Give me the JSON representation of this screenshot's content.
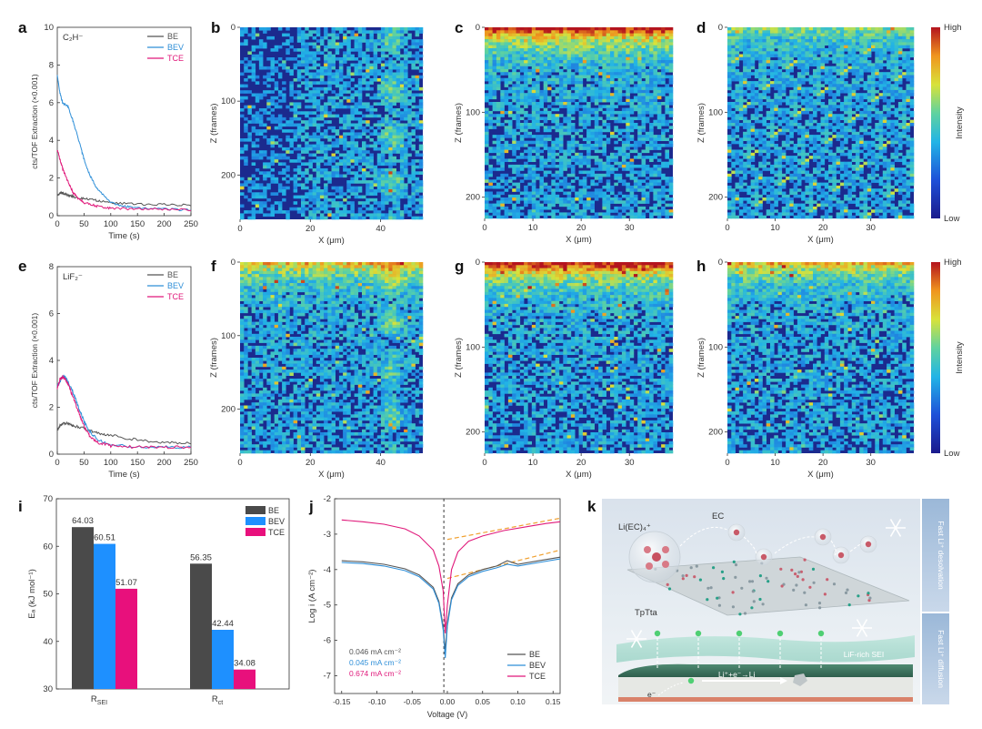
{
  "panel_labels": [
    "a",
    "b",
    "c",
    "d",
    "e",
    "f",
    "g",
    "h",
    "i",
    "j",
    "k"
  ],
  "colors": {
    "BE": "#555555",
    "BEV": "#2f8fd8",
    "TCE": "#e0187a",
    "bar_BE": "#4a4a4a",
    "bar_BEV": "#1e90ff",
    "bar_TCE": "#e8107c",
    "dash": "#f0a030"
  },
  "chart_data": [
    {
      "id": "a",
      "type": "line",
      "annotation": "C₂H⁻",
      "xlabel": "Time (s)",
      "ylabel": "cts/TOF Extraction (×0.001)",
      "xlim": [
        0,
        250
      ],
      "ylim": [
        0,
        10
      ],
      "x_ticks": [
        "0",
        "50",
        "100",
        "150",
        "200",
        "250"
      ],
      "y_ticks": [
        "0",
        "2",
        "4",
        "6",
        "8",
        "10"
      ],
      "legend_position": "top-right",
      "series": [
        {
          "name": "BE",
          "x": [
            0,
            5,
            10,
            20,
            30,
            50,
            75,
            100,
            150,
            200,
            250
          ],
          "y": [
            1.1,
            1.2,
            1.2,
            1.1,
            1.0,
            0.9,
            0.8,
            0.7,
            0.6,
            0.6,
            0.55
          ]
        },
        {
          "name": "BEV",
          "x": [
            0,
            5,
            10,
            20,
            30,
            40,
            50,
            60,
            75,
            100,
            125,
            150,
            200,
            250
          ],
          "y": [
            7.5,
            6.5,
            6.0,
            5.8,
            5.0,
            4.0,
            3.0,
            2.2,
            1.4,
            0.7,
            0.5,
            0.4,
            0.35,
            0.3
          ]
        },
        {
          "name": "TCE",
          "x": [
            0,
            5,
            10,
            20,
            30,
            40,
            50,
            75,
            100,
            150,
            200,
            250
          ],
          "y": [
            3.5,
            3.0,
            2.5,
            1.8,
            1.2,
            0.9,
            0.7,
            0.5,
            0.4,
            0.35,
            0.35,
            0.3
          ]
        }
      ]
    },
    {
      "id": "b",
      "type": "heatmap",
      "xlabel": "X (μm)",
      "ylabel": "Z (frames)",
      "x_ticks": [
        "0",
        "20",
        "40"
      ],
      "y_ticks": [
        "0",
        "100",
        "200"
      ],
      "xlim": [
        0,
        52
      ],
      "ylim": [
        0,
        260
      ],
      "surface_band": "none",
      "streak": "right"
    },
    {
      "id": "c",
      "type": "heatmap",
      "xlabel": "X (μm)",
      "ylabel": "Z (frames)",
      "x_ticks": [
        "0",
        "10",
        "20",
        "30"
      ],
      "y_ticks": [
        "0",
        "100",
        "200"
      ],
      "xlim": [
        0,
        39
      ],
      "ylim": [
        0,
        225
      ],
      "surface_band": "strong",
      "streak": "none"
    },
    {
      "id": "d",
      "type": "heatmap",
      "xlabel": "X (μm)",
      "ylabel": "Z (frames)",
      "x_ticks": [
        "0",
        "10",
        "20",
        "30"
      ],
      "y_ticks": [
        "0",
        "100",
        "200"
      ],
      "xlim": [
        0,
        39
      ],
      "ylim": [
        0,
        225
      ],
      "surface_band": "weak",
      "streak": "none",
      "colorbar": {
        "high": "High",
        "low": "Low",
        "label": "Intensity"
      }
    },
    {
      "id": "e",
      "type": "line",
      "annotation": "LiF₂⁻",
      "xlabel": "Time (s)",
      "ylabel": "cts/TOF Extraction (×0.001)",
      "xlim": [
        0,
        250
      ],
      "ylim": [
        0,
        8
      ],
      "x_ticks": [
        "0",
        "50",
        "100",
        "150",
        "200",
        "250"
      ],
      "y_ticks": [
        "0",
        "2",
        "4",
        "6",
        "8"
      ],
      "legend_position": "top-right",
      "series": [
        {
          "name": "BE",
          "x": [
            0,
            5,
            10,
            20,
            30,
            50,
            75,
            100,
            150,
            200,
            250
          ],
          "y": [
            1.0,
            1.2,
            1.3,
            1.3,
            1.2,
            1.1,
            0.9,
            0.8,
            0.6,
            0.5,
            0.45
          ]
        },
        {
          "name": "BEV",
          "x": [
            0,
            5,
            10,
            15,
            20,
            30,
            40,
            50,
            60,
            75,
            100,
            150,
            200,
            250
          ],
          "y": [
            2.9,
            3.1,
            3.3,
            3.3,
            3.1,
            2.6,
            2.0,
            1.4,
            1.0,
            0.6,
            0.4,
            0.3,
            0.3,
            0.3
          ]
        },
        {
          "name": "TCE",
          "x": [
            0,
            5,
            10,
            15,
            20,
            30,
            40,
            50,
            60,
            75,
            100,
            150,
            200,
            250
          ],
          "y": [
            2.8,
            3.2,
            3.3,
            3.2,
            3.0,
            2.4,
            1.8,
            1.2,
            0.8,
            0.5,
            0.35,
            0.3,
            0.3,
            0.3
          ]
        }
      ]
    },
    {
      "id": "f",
      "type": "heatmap",
      "xlabel": "X (μm)",
      "ylabel": "Z (frames)",
      "x_ticks": [
        "0",
        "20",
        "40"
      ],
      "y_ticks": [
        "0",
        "100",
        "200"
      ],
      "xlim": [
        0,
        52
      ],
      "ylim": [
        0,
        260
      ],
      "surface_band": "medium",
      "streak": "right"
    },
    {
      "id": "g",
      "type": "heatmap",
      "xlabel": "X (μm)",
      "ylabel": "Z (frames)",
      "x_ticks": [
        "0",
        "10",
        "20",
        "30"
      ],
      "y_ticks": [
        "0",
        "100",
        "200"
      ],
      "xlim": [
        0,
        39
      ],
      "ylim": [
        0,
        225
      ],
      "surface_band": "strong",
      "streak": "none"
    },
    {
      "id": "h",
      "type": "heatmap",
      "xlabel": "X (μm)",
      "ylabel": "Z (frames)",
      "x_ticks": [
        "0",
        "10",
        "20",
        "30"
      ],
      "y_ticks": [
        "0",
        "100",
        "200"
      ],
      "xlim": [
        0,
        39
      ],
      "ylim": [
        0,
        225
      ],
      "surface_band": "medium",
      "streak": "none",
      "colorbar": {
        "high": "High",
        "low": "Low",
        "label": "Intensity"
      }
    },
    {
      "id": "i",
      "type": "bar",
      "ylabel": "Eₐ (kJ mol⁻¹)",
      "ylim": [
        30,
        70
      ],
      "y_ticks": [
        "30",
        "40",
        "50",
        "60",
        "70"
      ],
      "categories": [
        "R_SEI",
        "R_ct"
      ],
      "category_labels": [
        {
          "main": "R",
          "sub": "SEI"
        },
        {
          "main": "R",
          "sub": "ct"
        }
      ],
      "legend_position": "top-right",
      "series": [
        {
          "name": "BE",
          "values": [
            64.03,
            56.35
          ],
          "labels": [
            "64.03",
            "56.35"
          ]
        },
        {
          "name": "BEV",
          "values": [
            60.51,
            42.44
          ],
          "labels": [
            "60.51",
            "42.44"
          ]
        },
        {
          "name": "TCE",
          "values": [
            51.07,
            34.08
          ],
          "labels": [
            "51.07",
            "34.08"
          ]
        }
      ]
    },
    {
      "id": "j",
      "type": "line",
      "xlabel": "Voltage (V)",
      "ylabel": "Log i (A cm⁻²)",
      "xlim": [
        -0.16,
        0.16
      ],
      "ylim": [
        -7.5,
        -2
      ],
      "x_ticks": [
        "-0.15",
        "-0.10",
        "-0.05",
        "0.00",
        "0.05",
        "0.10",
        "0.15"
      ],
      "y_ticks": [
        "-2",
        "-3",
        "-4",
        "-5",
        "-6",
        "-7"
      ],
      "legend_position": "bottom-right",
      "exchange_currents": [
        {
          "label": "0.046 mA cm⁻²",
          "series": "BE"
        },
        {
          "label": "0.045 mA cm⁻²",
          "series": "BEV"
        },
        {
          "label": "0.674 mA cm⁻²",
          "series": "TCE"
        }
      ],
      "series": [
        {
          "name": "BE",
          "x": [
            -0.15,
            -0.12,
            -0.09,
            -0.06,
            -0.04,
            -0.02,
            -0.012,
            -0.006,
            -0.003,
            0.0,
            0.006,
            0.015,
            0.03,
            0.05,
            0.07,
            0.085,
            0.1,
            0.13,
            0.16
          ],
          "y": [
            -3.75,
            -3.78,
            -3.85,
            -3.98,
            -4.15,
            -4.5,
            -4.9,
            -5.6,
            -6.3,
            -5.5,
            -4.8,
            -4.4,
            -4.15,
            -4.0,
            -3.9,
            -3.75,
            -3.85,
            -3.75,
            -3.65
          ]
        },
        {
          "name": "BEV",
          "x": [
            -0.15,
            -0.12,
            -0.09,
            -0.06,
            -0.04,
            -0.02,
            -0.012,
            -0.006,
            -0.003,
            0.0,
            0.006,
            0.015,
            0.03,
            0.05,
            0.07,
            0.085,
            0.1,
            0.13,
            0.16
          ],
          "y": [
            -3.8,
            -3.83,
            -3.9,
            -4.03,
            -4.2,
            -4.55,
            -4.95,
            -5.7,
            -6.5,
            -5.6,
            -4.85,
            -4.45,
            -4.2,
            -4.05,
            -3.95,
            -3.85,
            -3.9,
            -3.8,
            -3.7
          ]
        },
        {
          "name": "TCE",
          "x": [
            -0.15,
            -0.12,
            -0.09,
            -0.06,
            -0.04,
            -0.02,
            -0.012,
            -0.006,
            -0.003,
            0.0,
            0.006,
            0.015,
            0.03,
            0.05,
            0.08,
            0.11,
            0.14,
            0.16
          ],
          "y": [
            -2.6,
            -2.65,
            -2.72,
            -2.85,
            -3.05,
            -3.45,
            -3.9,
            -4.6,
            -5.8,
            -5.0,
            -4.0,
            -3.5,
            -3.2,
            -3.05,
            -2.9,
            -2.8,
            -2.7,
            -2.65
          ]
        }
      ],
      "tangents": [
        {
          "x": [
            0.0,
            0.16
          ],
          "y": [
            -3.15,
            -2.55
          ]
        },
        {
          "x": [
            0.0,
            0.16
          ],
          "y": [
            -4.25,
            -3.45
          ]
        }
      ]
    }
  ],
  "schematic_k": {
    "species_label": "Li(EC)₄⁺",
    "solvent_label": "EC",
    "framework_label": "TpTta",
    "sei_label": "LiF-rich SEI",
    "reaction_label": "Li⁺+e⁻→Li",
    "electron_label": "e⁻",
    "side_top": "Fast Li⁺ desolvation",
    "side_bottom": "Fast Li⁺ diffusion"
  }
}
